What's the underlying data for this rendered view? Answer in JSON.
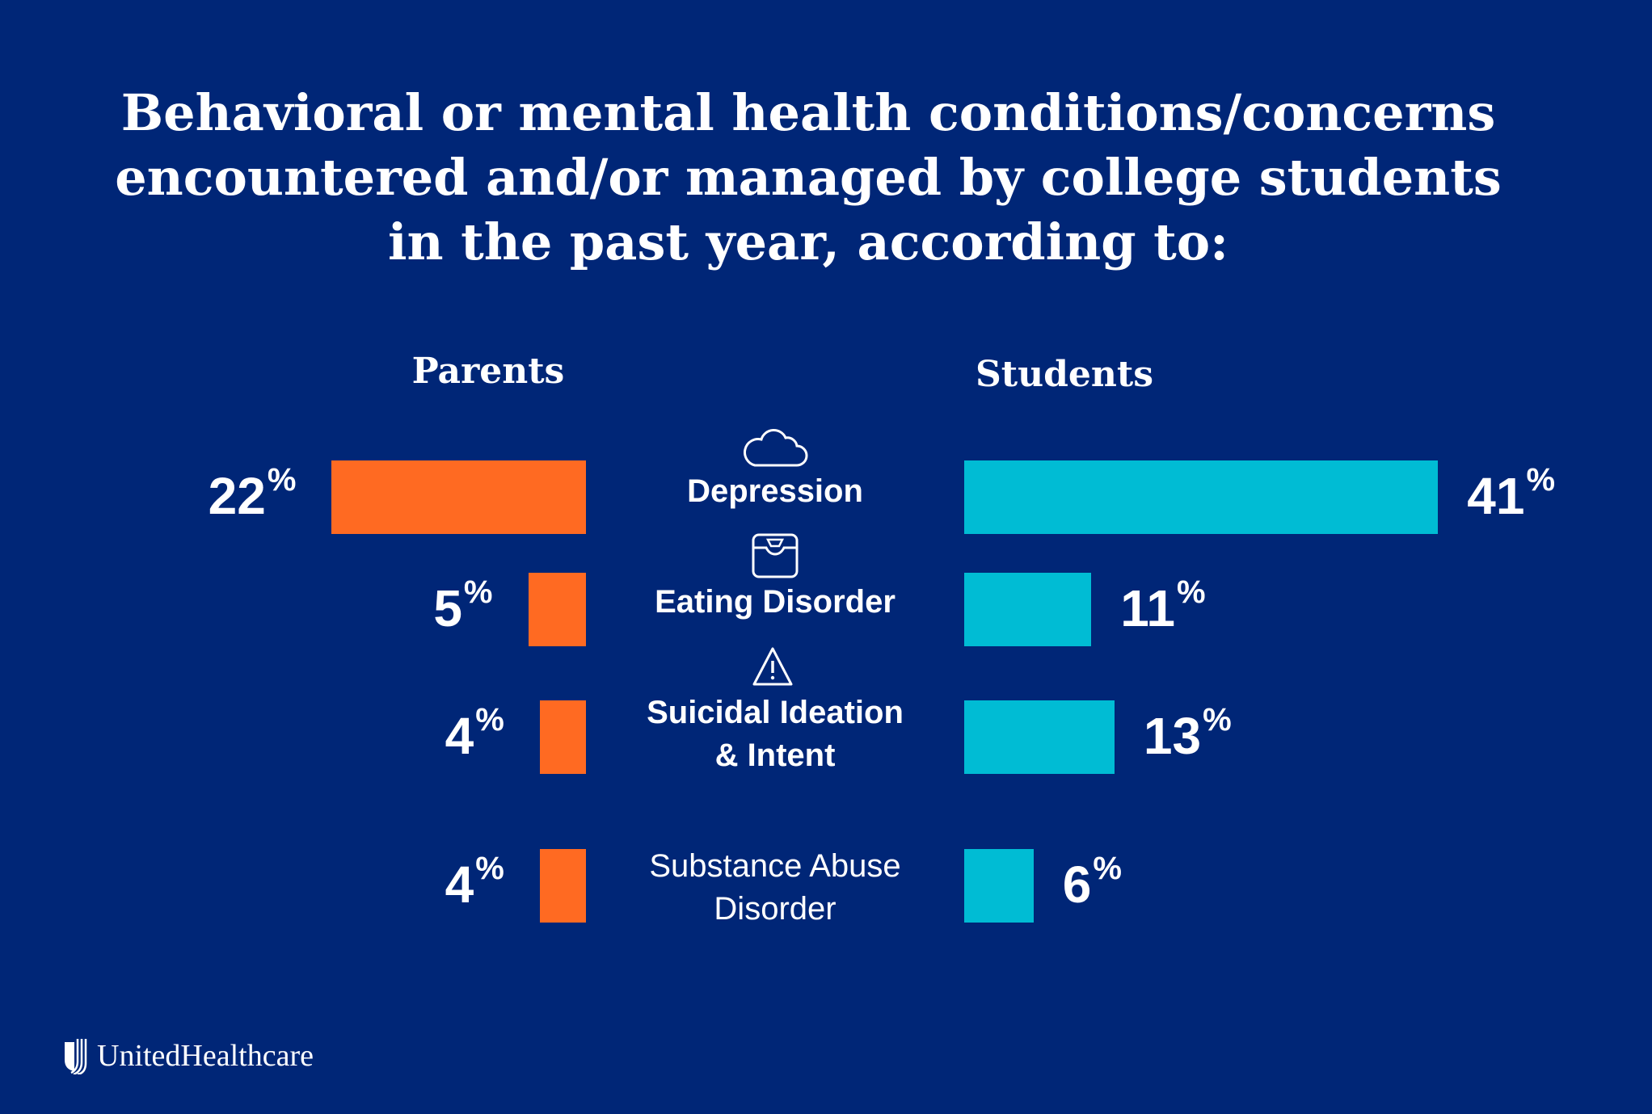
{
  "chart_data": {
    "type": "bar",
    "orientation": "horizontal-diverging",
    "title": "Behavioral or mental health conditions/concerns encountered and/or managed by college students in the past year, according to:",
    "title_lines": [
      "Behavioral or mental health conditions/concerns",
      "encountered and/or managed by college students",
      "in the past year, according to:"
    ],
    "categories": [
      "Depression",
      "Eating Disorder",
      "Suicidal Ideation & Intent",
      "Substance Abuse Disorder"
    ],
    "category_lines": [
      [
        "Depression"
      ],
      [
        "Eating Disorder"
      ],
      [
        "Suicidal Ideation",
        "& Intent"
      ],
      [
        "Substance Abuse",
        "Disorder"
      ]
    ],
    "category_icons": [
      "cloud-icon",
      "scale-icon",
      "warning-icon",
      null
    ],
    "series": [
      {
        "name": "Parents",
        "values": [
          22,
          5,
          4,
          4
        ],
        "color": "#ff6a22"
      },
      {
        "name": "Students",
        "values": [
          41,
          11,
          13,
          6
        ],
        "color": "#00bcd4"
      }
    ],
    "unit": "%",
    "grid": false
  },
  "brand": {
    "logo_text": "UnitedHealthcare",
    "background": "#002677"
  }
}
